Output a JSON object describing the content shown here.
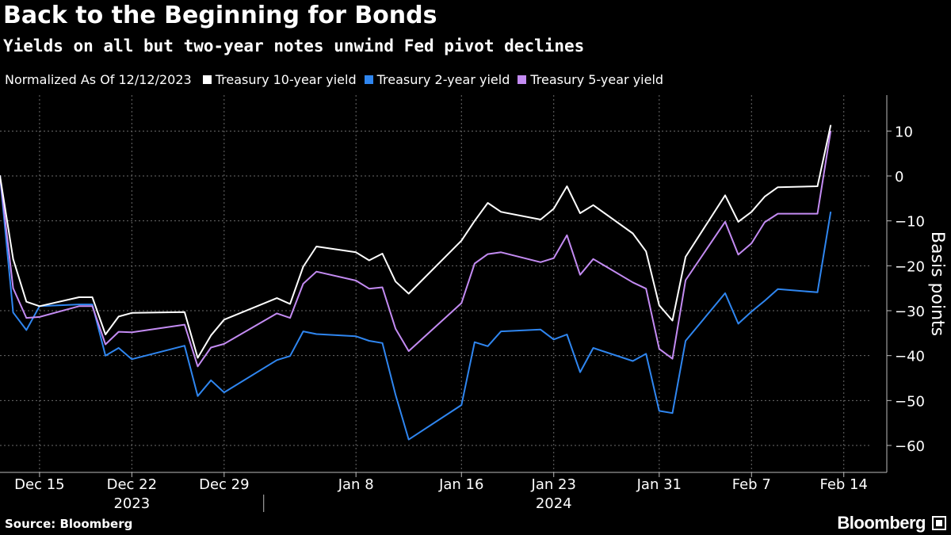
{
  "header": {
    "title": "Back to the Beginning for Bonds",
    "subtitle": "Yields on all but two-year notes unwind Fed pivot declines"
  },
  "legend": {
    "note": "Normalized As Of 12/12/2023"
  },
  "footer": {
    "source": "Source: Bloomberg",
    "brand": "Bloomberg"
  },
  "colors": {
    "background": "#000000",
    "grid": "#6b6b6b",
    "ten_year": "#ffffff",
    "two_year": "#2f86f0",
    "five_year": "#c38bf2"
  },
  "chart_data": {
    "type": "line",
    "ylabel": "Basis points",
    "ylim": [
      -66,
      18
    ],
    "yticks": [
      10,
      0,
      -10,
      -20,
      -30,
      -40,
      -50,
      -60
    ],
    "y_axis_side": "right",
    "grid": true,
    "legend_position": "top-left",
    "x": [
      "2023-12-12",
      "2023-12-13",
      "2023-12-14",
      "2023-12-15",
      "2023-12-18",
      "2023-12-19",
      "2023-12-20",
      "2023-12-21",
      "2023-12-22",
      "2023-12-26",
      "2023-12-27",
      "2023-12-28",
      "2023-12-29",
      "2024-01-02",
      "2024-01-03",
      "2024-01-04",
      "2024-01-05",
      "2024-01-08",
      "2024-01-09",
      "2024-01-10",
      "2024-01-11",
      "2024-01-12",
      "2024-01-16",
      "2024-01-17",
      "2024-01-18",
      "2024-01-19",
      "2024-01-22",
      "2024-01-23",
      "2024-01-24",
      "2024-01-25",
      "2024-01-26",
      "2024-01-29",
      "2024-01-30",
      "2024-01-31",
      "2024-02-01",
      "2024-02-02",
      "2024-02-05",
      "2024-02-06",
      "2024-02-07",
      "2024-02-08",
      "2024-02-09",
      "2024-02-12",
      "2024-02-13"
    ],
    "x_range": [
      "2023-12-12",
      "2024-02-16"
    ],
    "x_ticks": [
      {
        "date": "2023-12-15",
        "label": "Dec 15"
      },
      {
        "date": "2023-12-22",
        "label": "Dec 22"
      },
      {
        "date": "2023-12-29",
        "label": "Dec 29"
      },
      {
        "date": "2024-01-08",
        "label": "Jan 8"
      },
      {
        "date": "2024-01-16",
        "label": "Jan 16"
      },
      {
        "date": "2024-01-23",
        "label": "Jan 23"
      },
      {
        "date": "2024-01-31",
        "label": "Jan 31"
      },
      {
        "date": "2024-02-07",
        "label": "Feb 7"
      },
      {
        "date": "2024-02-14",
        "label": "Feb 14"
      }
    ],
    "year_labels": [
      {
        "date": "2023-12-22",
        "label": "2023"
      },
      {
        "date": "2024-01-23",
        "label": "2024"
      }
    ],
    "year_divider_date": "2024-01-01",
    "series": [
      {
        "name": "Treasury 10-year yield",
        "color": "#ffffff",
        "values": [
          0,
          -18.5,
          -28,
          -29,
          -27,
          -27,
          -35.3,
          -31.3,
          -30.5,
          -30.3,
          -40.5,
          -35.5,
          -32,
          -27.2,
          -28.5,
          -20.2,
          -15.7,
          -17,
          -18.8,
          -17.3,
          -23.5,
          -26.2,
          -14.4,
          -10,
          -6,
          -8,
          -9.7,
          -7.3,
          -2.3,
          -8.3,
          -6.5,
          -12.8,
          -16.8,
          -28.8,
          -32.2,
          -18,
          -4.3,
          -10.2,
          -8,
          -4.6,
          -2.5,
          -2.3,
          11.2
        ]
      },
      {
        "name": "Treasury 2-year yield",
        "color": "#2f86f0",
        "values": [
          0,
          -30.4,
          -34.3,
          -29,
          -28.6,
          -28.6,
          -40,
          -38.3,
          -40.8,
          -37.8,
          -49,
          -45.5,
          -48.2,
          -41,
          -40.1,
          -34.6,
          -35.2,
          -35.7,
          -36.7,
          -37.2,
          -48.7,
          -58.7,
          -51,
          -37,
          -37.9,
          -34.6,
          -34.2,
          -36.4,
          -35.3,
          -43.7,
          -38.3,
          -41.2,
          -39.6,
          -52.3,
          -52.8,
          -36.7,
          -26.1,
          -32.9,
          -30.2,
          -27.8,
          -25.2,
          -25.9,
          -8.1
        ]
      },
      {
        "name": "Treasury 5-year yield",
        "color": "#c38bf2",
        "values": [
          0,
          -25,
          -31.6,
          -31.4,
          -29,
          -29,
          -37.5,
          -34.7,
          -34.8,
          -33.1,
          -42.4,
          -38.2,
          -37.4,
          -30.6,
          -31.6,
          -24,
          -21.3,
          -23.3,
          -25.1,
          -24.8,
          -34,
          -39,
          -28.3,
          -19.5,
          -17.4,
          -17,
          -19.2,
          -18.3,
          -13.2,
          -22,
          -18.5,
          -23.7,
          -25.1,
          -38.5,
          -40.7,
          -23.2,
          -10.2,
          -17.5,
          -15,
          -10.3,
          -8.4,
          -8.4,
          9.9
        ]
      }
    ]
  }
}
